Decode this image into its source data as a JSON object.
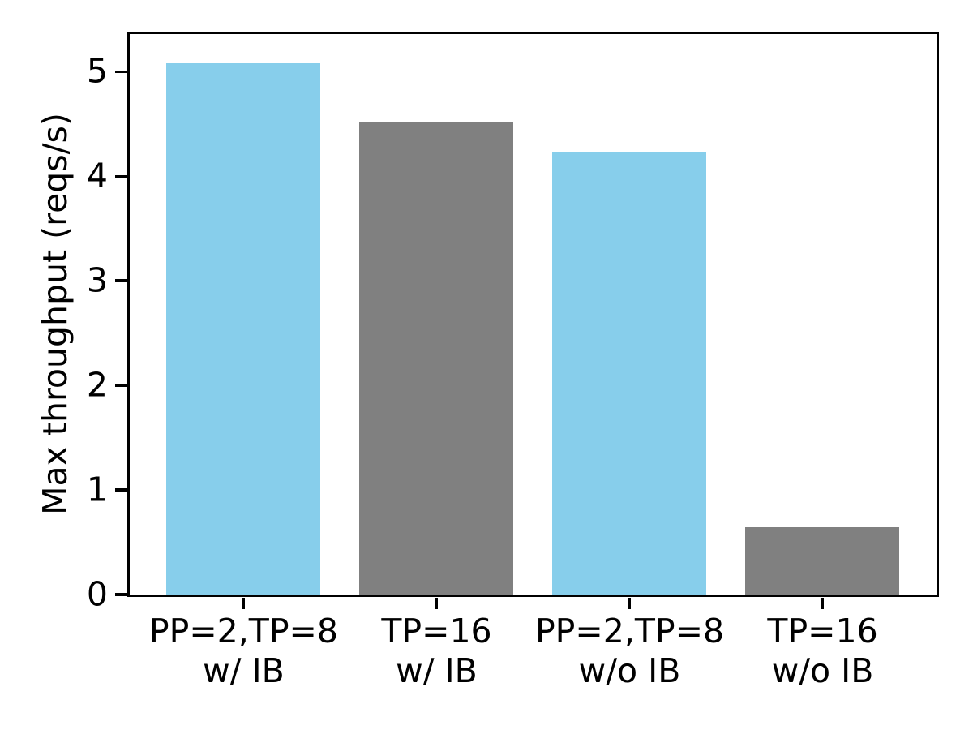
{
  "chart_data": {
    "type": "bar",
    "title": "",
    "ylabel": "Max throughput (reqs/s)",
    "xlabel": "",
    "categories": [
      [
        "PP=2,TP=8",
        "w/ IB"
      ],
      [
        "TP=16",
        "w/ IB"
      ],
      [
        "PP=2,TP=8",
        "w/o IB"
      ],
      [
        "TP=16",
        "w/o IB"
      ]
    ],
    "values": [
      5.08,
      4.52,
      4.22,
      0.64
    ],
    "bar_colors": [
      "#87CEEB",
      "#808080",
      "#87CEEB",
      "#808080"
    ],
    "yticks": [
      0,
      1,
      2,
      3,
      4,
      5
    ],
    "ylim": [
      0,
      5.36
    ],
    "bar_width": 0.8,
    "xlim": [
      -0.59,
      3.59
    ],
    "grid": false,
    "legend_position": "none"
  },
  "colors": {
    "axis": "#000000",
    "background": "#FFFFFF",
    "skyblue": "#87CEEB",
    "gray": "#808080"
  }
}
